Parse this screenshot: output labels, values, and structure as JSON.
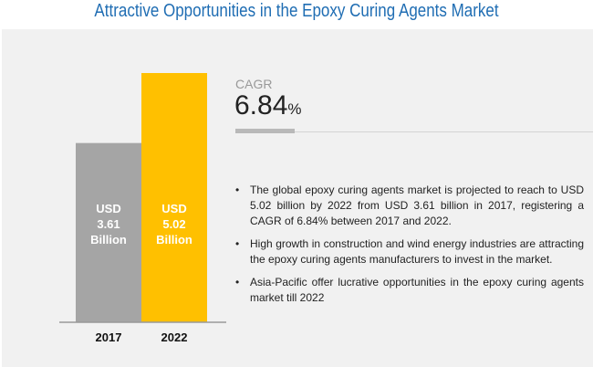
{
  "title": "Attractive Opportunities in the Epoxy Curing Agents Market",
  "cagr": {
    "label": "CAGR",
    "value": "6.84",
    "unit": "%"
  },
  "bullets": [
    "The global epoxy curing agents market is projected to reach to USD 5.02 billion by 2022 from USD 3.61 billion in 2017, registering a CAGR of 6.84% between 2017 and 2022.",
    "High growth in construction and wind energy industries are attracting the epoxy curing agents manufacturers to invest in the market.",
    "Asia-Pacific offer lucrative opportunities in the epoxy curing agents market till 2022"
  ],
  "chart_data": {
    "type": "bar",
    "categories": [
      "2017",
      "2022"
    ],
    "values": [
      3.61,
      5.02
    ],
    "data_labels": [
      [
        "USD",
        "3.61",
        "Billion"
      ],
      [
        "USD",
        "5.02",
        "Billion"
      ]
    ],
    "colors": [
      "#a5a5a5",
      "#ffc000"
    ],
    "unit": "USD Billion",
    "ylim": [
      0,
      5.02
    ]
  }
}
